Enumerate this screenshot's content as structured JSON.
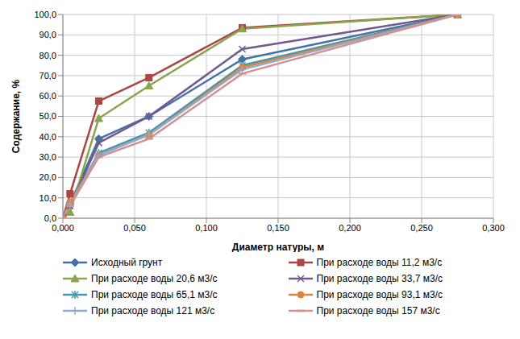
{
  "chart_data": {
    "type": "line",
    "x_label": "Диаметр натуры, м",
    "y_label": "Содержание, %",
    "x": [
      0,
      0.005,
      0.025,
      0.06,
      0.125,
      0.275
    ],
    "xlim": [
      0,
      0.3
    ],
    "xticks": [
      {
        "value": 0,
        "label": "0,000"
      },
      {
        "value": 0.05,
        "label": "0,050"
      },
      {
        "value": 0.1,
        "label": "0,100"
      },
      {
        "value": 0.15,
        "label": "0,150"
      },
      {
        "value": 0.2,
        "label": "0,200"
      },
      {
        "value": 0.25,
        "label": "0,250"
      },
      {
        "value": 0.3,
        "label": "0,300"
      }
    ],
    "ylim": [
      0,
      100
    ],
    "yticks": [
      {
        "value": 0,
        "label": "0,0"
      },
      {
        "value": 10,
        "label": "10,0"
      },
      {
        "value": 20,
        "label": "20,0"
      },
      {
        "value": 30,
        "label": "30,0"
      },
      {
        "value": 40,
        "label": "40,0"
      },
      {
        "value": 50,
        "label": "50,0"
      },
      {
        "value": 60,
        "label": "60,0"
      },
      {
        "value": 70,
        "label": "70,0"
      },
      {
        "value": 80,
        "label": "80,0"
      },
      {
        "value": 90,
        "label": "90,0"
      },
      {
        "value": 100,
        "label": "100,0"
      }
    ],
    "grid": true,
    "legend": "bottom",
    "series": [
      {
        "name": "Исходный грунт",
        "color": "#4572a7",
        "marker": "diamond",
        "values": [
          0,
          7,
          39,
          50,
          78,
          100
        ]
      },
      {
        "name": "При расходе воды 11,2 м3/с",
        "color": "#aa4643",
        "marker": "square",
        "values": [
          0,
          12,
          57.5,
          69,
          93.5,
          100
        ]
      },
      {
        "name": "При расходе воды 20,6 м3/с",
        "color": "#89a54e",
        "marker": "triangle",
        "values": [
          0,
          3,
          49,
          65,
          93,
          100
        ]
      },
      {
        "name": "При расходе воды 33,7 м3/с",
        "color": "#71588f",
        "marker": "x",
        "values": [
          0,
          6,
          37,
          50,
          83,
          100
        ]
      },
      {
        "name": "При расходе воды 65,1 м3/с",
        "color": "#4198af",
        "marker": "star",
        "values": [
          0,
          7,
          32,
          42,
          75,
          100
        ]
      },
      {
        "name": "При расходе воды 93,1 м3/с",
        "color": "#db843d",
        "marker": "circle",
        "values": [
          0,
          8,
          31,
          41,
          74,
          100
        ]
      },
      {
        "name": "При расходе воды 121 м3/с",
        "color": "#93a9cf",
        "marker": "plus",
        "values": [
          0,
          7,
          31,
          41,
          73,
          100
        ]
      },
      {
        "name": "При расходе воды 157 м3/с",
        "color": "#d19392",
        "marker": "dash",
        "values": [
          0,
          6,
          30,
          39,
          71,
          100
        ]
      }
    ]
  }
}
